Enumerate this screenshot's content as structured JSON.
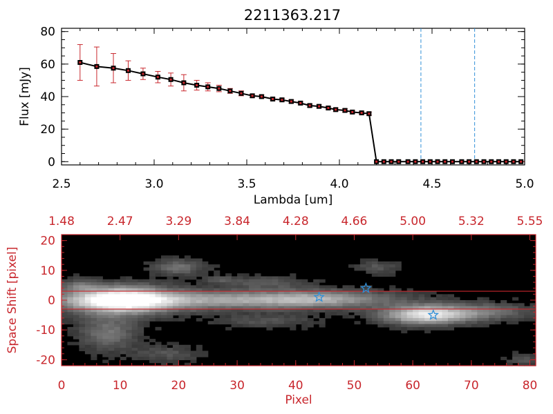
{
  "chart_data": [
    {
      "type": "line",
      "title": "2211363.217",
      "xlabel": "Lambda [um]",
      "ylabel": "Flux [mJy]",
      "xlim": [
        2.5,
        5.0
      ],
      "ylim": [
        -2,
        82
      ],
      "xticks": [
        {
          "value": 2.5,
          "label": "2.5"
        },
        {
          "value": 3.0,
          "label": "3.0"
        },
        {
          "value": 3.5,
          "label": "3.5"
        },
        {
          "value": 4.0,
          "label": "4.0"
        },
        {
          "value": 4.5,
          "label": "4.5"
        },
        {
          "value": 5.0,
          "label": "5.0"
        }
      ],
      "yticks": [
        {
          "value": 0,
          "label": "0"
        },
        {
          "value": 20,
          "label": "20"
        },
        {
          "value": 40,
          "label": "40"
        },
        {
          "value": 60,
          "label": "60"
        },
        {
          "value": 80,
          "label": "80"
        }
      ],
      "vlines": [
        4.44,
        4.73
      ],
      "series": [
        {
          "name": "flux",
          "x": [
            2.6,
            2.69,
            2.78,
            2.86,
            2.94,
            3.02,
            3.09,
            3.16,
            3.23,
            3.29,
            3.35,
            3.41,
            3.47,
            3.53,
            3.58,
            3.64,
            3.69,
            3.74,
            3.79,
            3.84,
            3.89,
            3.94,
            3.98,
            4.03,
            4.07,
            4.12,
            4.16,
            4.2,
            4.24,
            4.28,
            4.32,
            4.37,
            4.41,
            4.45,
            4.49,
            4.53,
            4.57,
            4.61,
            4.66,
            4.7,
            4.74,
            4.78,
            4.82,
            4.86,
            4.9,
            4.94,
            4.98
          ],
          "y": [
            61,
            58.5,
            57.5,
            56,
            54,
            52,
            50.5,
            48.5,
            47,
            46,
            45,
            43.5,
            42,
            40.5,
            40,
            38.5,
            38,
            37,
            36,
            34.5,
            34,
            33,
            32,
            31.5,
            30.5,
            30,
            29.5,
            0,
            0,
            0,
            0,
            0,
            0,
            0,
            0,
            0,
            0,
            0,
            0,
            0,
            0,
            0,
            0,
            0,
            0,
            0,
            0
          ],
          "err": [
            11,
            12,
            9,
            6,
            3.5,
            3.5,
            4,
            5,
            3,
            2.5,
            2,
            1.5,
            1.5,
            1,
            1,
            1,
            1,
            1,
            1,
            1,
            1,
            1,
            1,
            1,
            1,
            1,
            1,
            0,
            0,
            0,
            0,
            0,
            0,
            0,
            0,
            0,
            0,
            0,
            0,
            0,
            0,
            0,
            0,
            0,
            0,
            0,
            0
          ]
        }
      ]
    },
    {
      "type": "heatmap",
      "xlabel": "Pixel",
      "ylabel": "Space Shift [pixel]",
      "xlim": [
        0,
        81
      ],
      "ylim": [
        -22,
        22
      ],
      "xticks": [
        {
          "value": 0,
          "label": "0"
        },
        {
          "value": 10,
          "label": "10"
        },
        {
          "value": 20,
          "label": "20"
        },
        {
          "value": 30,
          "label": "30"
        },
        {
          "value": 40,
          "label": "40"
        },
        {
          "value": 50,
          "label": "50"
        },
        {
          "value": 60,
          "label": "60"
        },
        {
          "value": 70,
          "label": "70"
        },
        {
          "value": 80,
          "label": "80"
        }
      ],
      "top_xticks": [
        {
          "value": 0,
          "label": "1.48"
        },
        {
          "value": 10,
          "label": "2.47"
        },
        {
          "value": 20,
          "label": "3.29"
        },
        {
          "value": 30,
          "label": "3.84"
        },
        {
          "value": 40,
          "label": "4.28"
        },
        {
          "value": 50,
          "label": "4.66"
        },
        {
          "value": 60,
          "label": "5.00"
        },
        {
          "value": 70,
          "label": "5.32"
        },
        {
          "value": 80,
          "label": "5.55"
        }
      ],
      "yticks": [
        {
          "value": -20,
          "label": "-20"
        },
        {
          "value": -10,
          "label": "-10"
        },
        {
          "value": 0,
          "label": "0"
        },
        {
          "value": 10,
          "label": "10"
        },
        {
          "value": 20,
          "label": "20"
        }
      ],
      "hlines": [
        3,
        -3
      ],
      "markers": [
        {
          "x": 44,
          "y": 1
        },
        {
          "x": 52,
          "y": 4
        },
        {
          "x": 63.5,
          "y": -5
        }
      ],
      "sources": [
        {
          "x": 10,
          "y": 0,
          "sx": 6,
          "sy": 3.2,
          "amp": 1.0
        },
        {
          "x": 26,
          "y": 0,
          "sx": 18,
          "sy": 2.2,
          "amp": 0.55
        },
        {
          "x": 44,
          "y": 0.5,
          "sx": 8,
          "sy": 2,
          "amp": 0.35
        },
        {
          "x": 62,
          "y": -5,
          "sx": 5,
          "sy": 2.2,
          "amp": 0.85
        },
        {
          "x": 72,
          "y": -4,
          "sx": 6,
          "sy": 2,
          "amp": 0.35
        },
        {
          "x": 20,
          "y": 11,
          "sx": 3,
          "sy": 1.8,
          "amp": 0.35
        },
        {
          "x": 54,
          "y": 11,
          "sx": 2.5,
          "sy": 1.5,
          "amp": 0.22
        },
        {
          "x": 8,
          "y": -11,
          "sx": 3.5,
          "sy": 4,
          "amp": 0.35
        },
        {
          "x": 18,
          "y": -18,
          "sx": 4,
          "sy": 2,
          "amp": 0.2
        },
        {
          "x": 35,
          "y": 6,
          "sx": 5,
          "sy": 1.5,
          "amp": 0.22
        },
        {
          "x": 35,
          "y": -7,
          "sx": 6,
          "sy": 1.5,
          "amp": 0.2
        },
        {
          "x": 3,
          "y": 5,
          "sx": 2,
          "sy": 1.5,
          "amp": 0.25
        },
        {
          "x": 79,
          "y": -20,
          "sx": 2,
          "sy": 1.5,
          "amp": 0.2
        },
        {
          "x": 27,
          "y": 7,
          "sx": 2,
          "sy": 1,
          "amp": 0.18
        }
      ]
    }
  ]
}
